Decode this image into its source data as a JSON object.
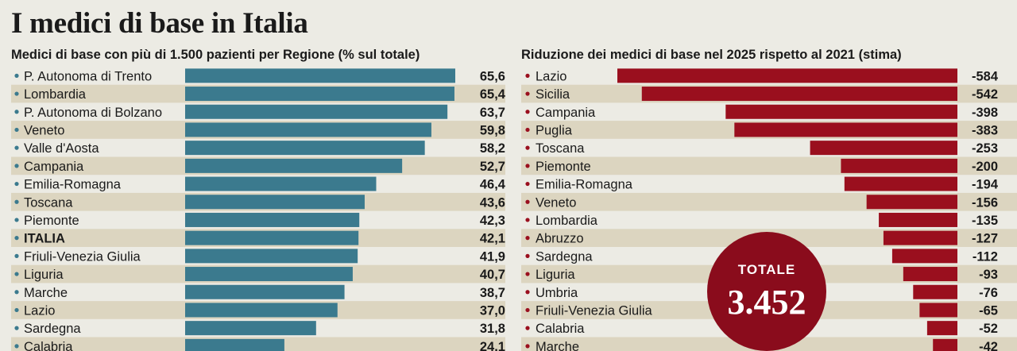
{
  "title": "I medici di base in Italia",
  "total": {
    "label": "TOTALE",
    "value": "3.452"
  },
  "colors": {
    "teal": "#3b7a8e",
    "red": "#9a0f1e",
    "stripe": "#dcd5c0",
    "background": "#ecebe4"
  },
  "chart_data": [
    {
      "type": "bar",
      "orientation": "horizontal",
      "title": "Medici di base con più di 1.500 pazienti per Regione (% sul totale)",
      "bold_categories": [
        "ITALIA"
      ],
      "categories": [
        "P. Autonoma di Trento",
        "Lombardia",
        "P. Autonoma di Bolzano",
        "Veneto",
        "Valle d'Aosta",
        "Campania",
        "Emilia-Romagna",
        "Toscana",
        "Piemonte",
        "ITALIA",
        "Friuli-Venezia Giulia",
        "Liguria",
        "Marche",
        "Lazio",
        "Sardegna",
        "Calabria"
      ],
      "values": [
        65.6,
        65.4,
        63.7,
        59.8,
        58.2,
        52.7,
        46.4,
        43.6,
        42.3,
        42.1,
        41.9,
        40.7,
        38.7,
        37.0,
        31.8,
        24.1
      ],
      "value_labels": [
        "65,6",
        "65,4",
        "63,7",
        "59,8",
        "58,2",
        "52,7",
        "46,4",
        "43,6",
        "42,3",
        "42,1",
        "41,9",
        "40,7",
        "38,7",
        "37,0",
        "31,8",
        "24,1"
      ],
      "xlim": [
        0,
        65.6
      ]
    },
    {
      "type": "bar",
      "orientation": "horizontal",
      "title": "Riduzione dei medici di base nel 2025 rispetto al 2021 (stima)",
      "categories": [
        "Lazio",
        "Sicilia",
        "Campania",
        "Puglia",
        "Toscana",
        "Piemonte",
        "Emilia-Romagna",
        "Veneto",
        "Lombardia",
        "Abruzzo",
        "Sardegna",
        "Liguria",
        "Umbria",
        "Friuli-Venezia Giulia",
        "Calabria",
        "Marche"
      ],
      "values": [
        -584,
        -542,
        -398,
        -383,
        -253,
        -200,
        -194,
        -156,
        -135,
        -127,
        -112,
        -93,
        -76,
        -65,
        -52,
        -42
      ],
      "value_labels": [
        "-584",
        "-542",
        "-398",
        "-383",
        "-253",
        "-200",
        "-194",
        "-156",
        "-135",
        "-127",
        "-112",
        "-93",
        "-76",
        "-65",
        "-52",
        "-42"
      ],
      "xlim": [
        -584,
        0
      ]
    }
  ]
}
